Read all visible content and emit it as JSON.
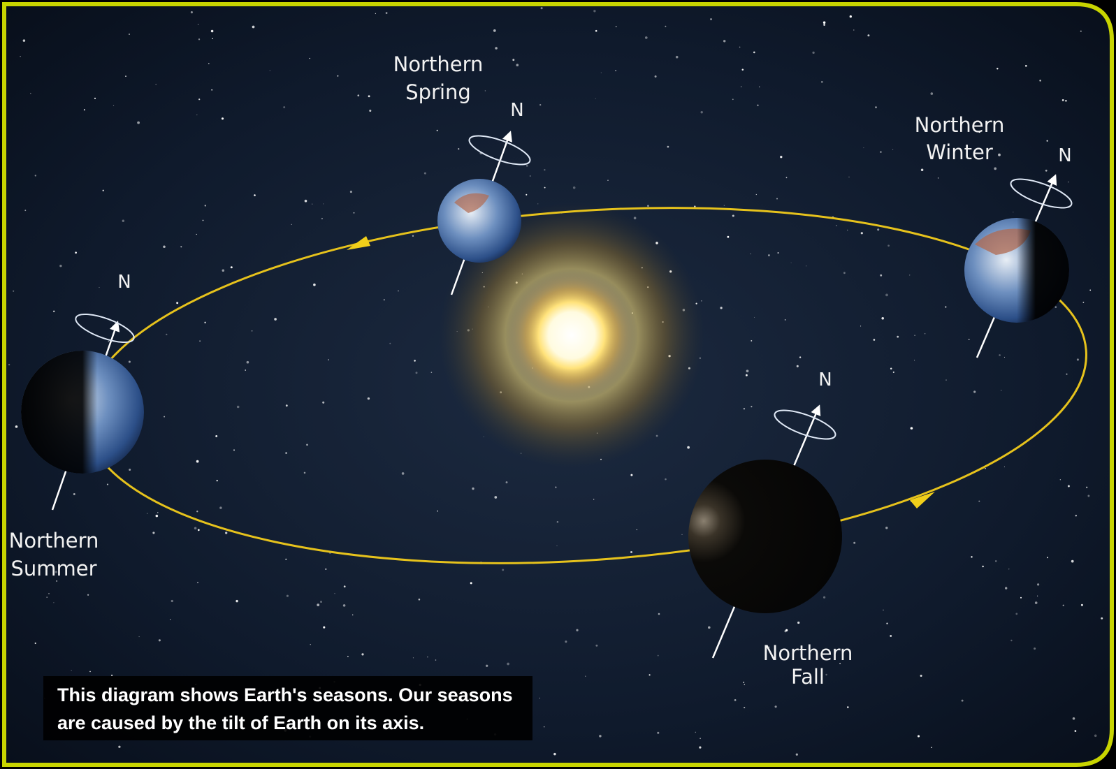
{
  "seasons": [
    {
      "label": [
        "Northern",
        "Spring"
      ],
      "pole": "N"
    },
    {
      "label": [
        "Northern",
        "Winter"
      ],
      "pole": "N"
    },
    {
      "label": [
        "Northern",
        "Summer"
      ],
      "pole": "N"
    },
    {
      "label": [
        "Northern",
        "Fall"
      ],
      "pole": "N"
    }
  ],
  "caption": [
    "This diagram shows Earth's seasons. Our seasons",
    "are caused by the tilt of Earth on its axis."
  ]
}
